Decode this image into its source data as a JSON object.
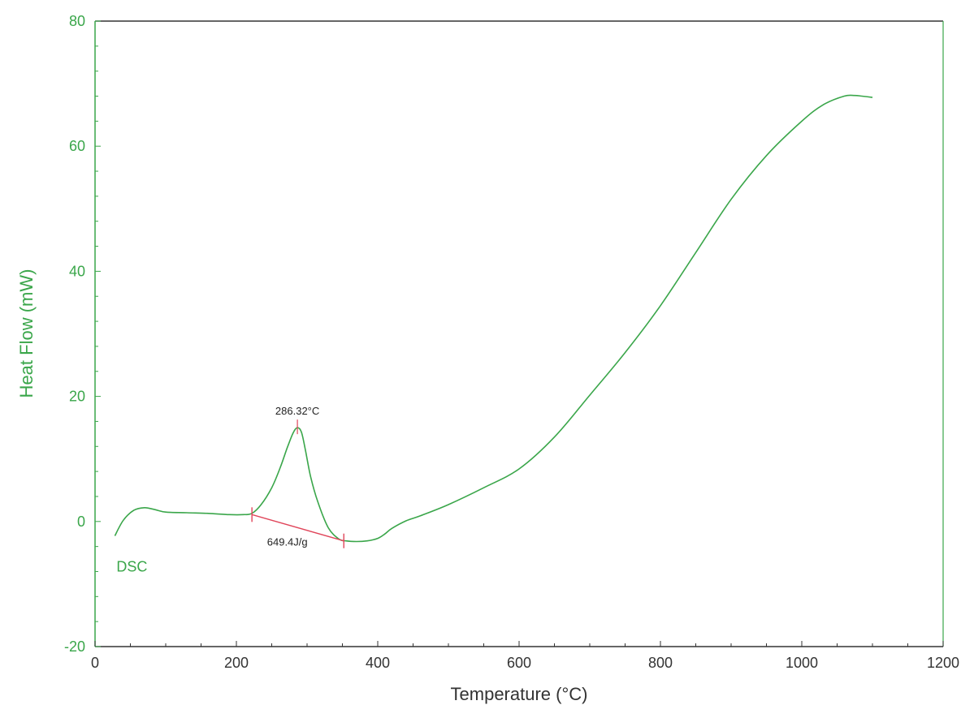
{
  "chart_data": {
    "type": "line",
    "xlabel": "Temperature (°C)",
    "ylabel": "Heat Flow (mW)",
    "xlim": [
      0,
      1200
    ],
    "ylim": [
      -20,
      80
    ],
    "xticks": [
      0,
      200,
      400,
      600,
      800,
      1000,
      1200
    ],
    "yticks": [
      -20,
      0,
      20,
      40,
      60,
      80
    ],
    "grid": false,
    "colors": {
      "series": "#3aa64a",
      "annotation": "#e0455a",
      "axis": "#333333"
    },
    "series": [
      {
        "name": "DSC",
        "x": [
          28,
          40,
          55,
          70,
          85,
          100,
          130,
          160,
          190,
          210,
          222,
          235,
          250,
          262,
          272,
          280,
          286,
          292,
          298,
          305,
          315,
          330,
          345,
          355,
          370,
          385,
          400,
          410,
          420,
          440,
          460,
          500,
          550,
          600,
          650,
          700,
          750,
          800,
          850,
          900,
          950,
          1000,
          1030,
          1060,
          1075,
          1085,
          1100
        ],
        "y": [
          -2.3,
          0.2,
          1.8,
          2.2,
          1.9,
          1.5,
          1.4,
          1.3,
          1.1,
          1.1,
          1.3,
          2.7,
          5.4,
          8.6,
          11.8,
          14.1,
          15.0,
          14.3,
          11.2,
          7.2,
          3.2,
          -1.0,
          -2.8,
          -3.1,
          -3.2,
          -3.1,
          -2.7,
          -2.0,
          -1.1,
          0.1,
          0.9,
          2.7,
          5.4,
          8.4,
          13.5,
          20.2,
          27.0,
          34.5,
          43.0,
          51.5,
          58.5,
          64.0,
          66.6,
          68.0,
          68.1,
          68.0,
          67.8
        ]
      }
    ],
    "annotations": {
      "peak_label": "286.32°C",
      "peak_temp": 286.32,
      "peak_value": 15.0,
      "enthalpy_label": "649.4J/g",
      "baseline_start": [
        222,
        1.1
      ],
      "baseline_end": [
        352,
        -3.1
      ],
      "series_label": "DSC"
    }
  }
}
